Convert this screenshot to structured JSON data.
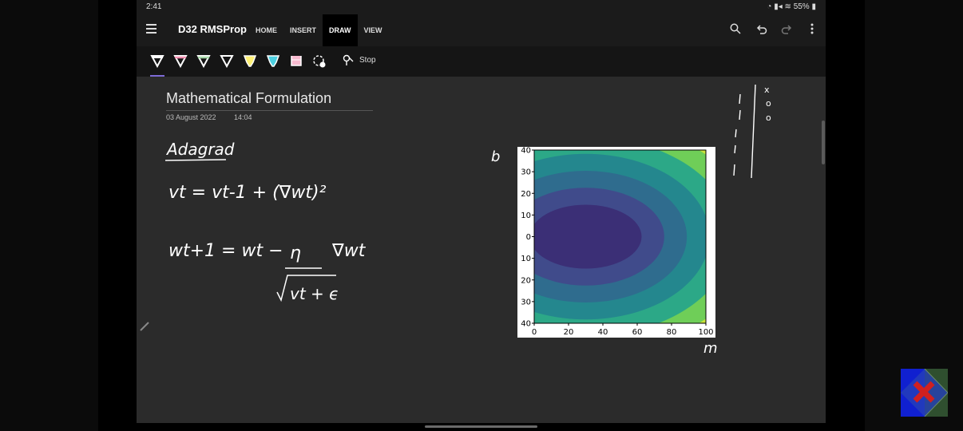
{
  "status_bar": {
    "time": "2:41",
    "battery": "55%"
  },
  "app_bar": {
    "notebook_title": "D32 RMSProp",
    "tabs": [
      {
        "label": "HOME"
      },
      {
        "label": "INSERT"
      },
      {
        "label": "DRAW",
        "active": true
      },
      {
        "label": "VIEW"
      }
    ],
    "icons": [
      "search-icon",
      "undo-icon",
      "redo-icon",
      "more-icon"
    ]
  },
  "draw_toolbar": {
    "pens": [
      {
        "icon": "pen-icon",
        "color": "#ffffff",
        "selected": true
      },
      {
        "icon": "pen-icon",
        "color": "#f48fb1"
      },
      {
        "icon": "pen-icon",
        "color": "#a5d6a7"
      },
      {
        "icon": "pen-icon",
        "color": "#ffffff"
      },
      {
        "icon": "highlighter-icon",
        "color": "#fff176"
      },
      {
        "icon": "highlighter-icon",
        "color": "#4dd0e1"
      },
      {
        "icon": "highlighter-icon",
        "color": "#f8bbd0"
      }
    ],
    "lasso_icon": "lasso-add-icon",
    "stop_label": "Stop"
  },
  "page": {
    "title": "Mathematical Formulation",
    "date": "03 August 2022",
    "time": "14:04"
  },
  "handwriting": {
    "heading": "Adagrad",
    "eq1": "vt = vt-1 + (∇wt)²",
    "eq2_lhs": "wt+1 = wt −",
    "eq2_num": "η",
    "eq2_rhs": "∇wt",
    "eq2_den": "vt + ϵ",
    "axis_b": "b",
    "axis_m": "m",
    "table_marks": [
      "x",
      "o",
      "o"
    ]
  },
  "chart_data": {
    "type": "contour",
    "x_ticks": [
      "0",
      "20",
      "40",
      "60",
      "80",
      "100"
    ],
    "y_ticks": [
      "40",
      "30",
      "20",
      "10",
      "0",
      "10",
      "20",
      "30",
      "40"
    ],
    "xlim": [
      0,
      100
    ],
    "ylim": [
      -40,
      40
    ],
    "minimum_center": [
      30,
      0
    ],
    "levels": 6,
    "colormap": [
      "#3b2f76",
      "#404b8b",
      "#2f6c8e",
      "#24878e",
      "#2ca887",
      "#6fce58",
      "#c9e33a"
    ]
  }
}
